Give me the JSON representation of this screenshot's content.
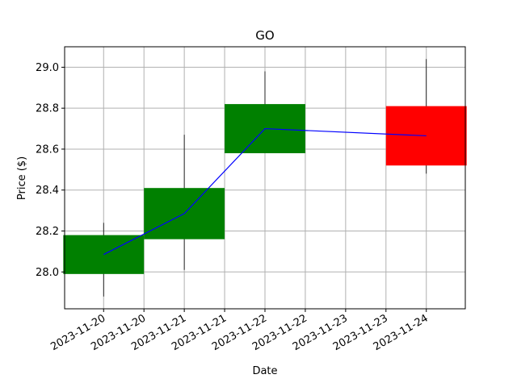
{
  "chart_data": {
    "type": "candlestick",
    "title": "GO",
    "xlabel": "Date",
    "ylabel": "Price ($)",
    "grid": true,
    "ylim": [
      27.82,
      29.1
    ],
    "xlim": [
      "2023-11-19T12:24",
      "2023-11-24T11:36"
    ],
    "y_ticks": [
      28.0,
      28.2,
      28.4,
      28.6,
      28.8,
      29.0
    ],
    "y_tick_labels": [
      "28.0",
      "28.2",
      "28.4",
      "28.6",
      "28.8",
      "29.0"
    ],
    "x_ticks": [
      "2023-11-20T00:00",
      "2023-11-20T12:00",
      "2023-11-21T00:00",
      "2023-11-21T12:00",
      "2023-11-22T00:00",
      "2023-11-22T12:00",
      "2023-11-23T00:00",
      "2023-11-23T12:00",
      "2023-11-24T00:00"
    ],
    "x_tick_labels": [
      "2023-11-20",
      "2023-11-20",
      "2023-11-21",
      "2023-11-21",
      "2023-11-22",
      "2023-11-22",
      "2023-11-23",
      "2023-11-23",
      "2023-11-24"
    ],
    "candles": [
      {
        "date": "2023-11-20",
        "open": 27.99,
        "high": 28.24,
        "low": 27.88,
        "close": 28.18,
        "direction": "up"
      },
      {
        "date": "2023-11-21",
        "open": 28.16,
        "high": 28.67,
        "low": 28.01,
        "close": 28.41,
        "direction": "up"
      },
      {
        "date": "2023-11-22",
        "open": 28.58,
        "high": 28.98,
        "low": 28.58,
        "close": 28.82,
        "direction": "up"
      },
      {
        "date": "2023-11-24",
        "open": 28.81,
        "high": 29.04,
        "low": 28.48,
        "close": 28.52,
        "direction": "down"
      }
    ],
    "line_series": {
      "x": [
        "2023-11-20",
        "2023-11-21",
        "2023-11-22",
        "2023-11-24"
      ],
      "values": [
        28.085,
        28.285,
        28.7,
        28.665
      ],
      "color": "#0000ff"
    },
    "colors": {
      "up": "#008000",
      "down": "#ff0000",
      "wick": "#000000",
      "grid": "#b0b0b0"
    }
  }
}
